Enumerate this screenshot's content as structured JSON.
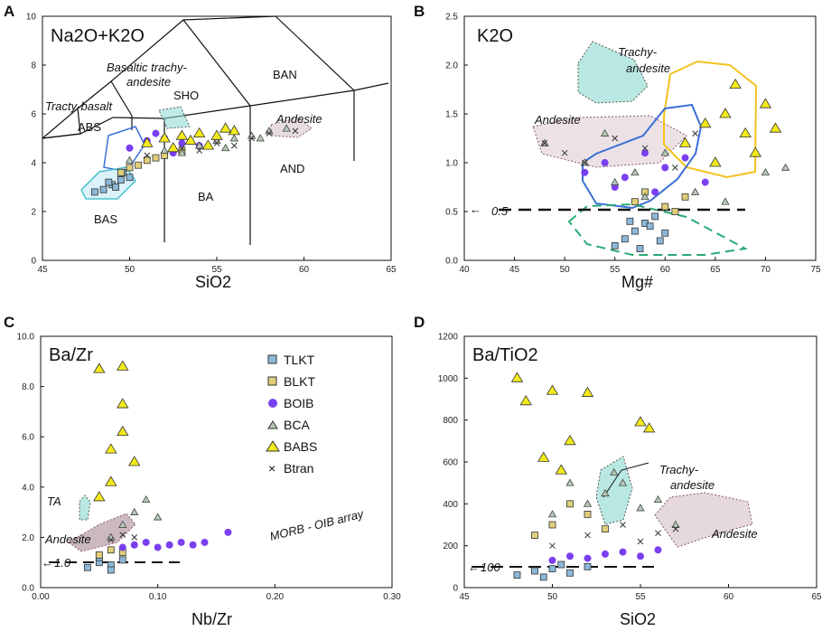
{
  "figure": {
    "symbol_colors": {
      "TLKT": "#8db8d8",
      "BLKT": "#e0cf7a",
      "BOIB": "#7a3ff0",
      "BCA": "#b5c8b5",
      "BABS": "#f2ea1a",
      "Btran": "#333333"
    }
  },
  "chart_data": [
    {
      "panel": "A",
      "type": "scatter",
      "title": "Na2O+K2O",
      "xlabel": "SiO2",
      "ylabel": "",
      "xlim": [
        45,
        65
      ],
      "ylim": [
        0,
        10
      ],
      "xticks": [
        "45",
        "50",
        "55",
        "60",
        "65"
      ],
      "yticks": [
        "0",
        "2",
        "4",
        "6",
        "8",
        "10"
      ],
      "field_labels": [
        "Basaltic trachy-",
        "andesite",
        "SHO",
        "BAN",
        "Tracty-basalt",
        "ABS",
        "Andesite",
        "AND",
        "BA",
        "BAS"
      ],
      "series": [
        {
          "name": "TLKT",
          "x": [
            48.5,
            49,
            49.5,
            48,
            49.2,
            50,
            48.8,
            49.6
          ],
          "y": [
            2.9,
            3.1,
            3.3,
            2.8,
            3.0,
            3.4,
            3.2,
            3.6
          ]
        },
        {
          "name": "BLKT",
          "x": [
            49.5,
            50.5,
            51,
            52,
            53,
            50,
            51.5
          ],
          "y": [
            3.6,
            3.9,
            4.1,
            4.3,
            4.5,
            3.8,
            4.2
          ]
        },
        {
          "name": "BOIB",
          "x": [
            50,
            51,
            52,
            53,
            51.5,
            52.5,
            54
          ],
          "y": [
            4.6,
            4.9,
            5.0,
            4.8,
            5.2,
            4.4,
            4.7
          ]
        },
        {
          "name": "BCA",
          "x": [
            50,
            52,
            54,
            55,
            56,
            57,
            58,
            59,
            53,
            55.5,
            57.5
          ],
          "y": [
            4.1,
            4.5,
            4.7,
            4.9,
            5.0,
            5.1,
            5.3,
            5.4,
            4.4,
            4.6,
            5.0
          ]
        },
        {
          "name": "BABS",
          "x": [
            51,
            52,
            53,
            54,
            55,
            56,
            52.5,
            53.5,
            54.5,
            55.5
          ],
          "y": [
            4.8,
            5.0,
            5.1,
            5.2,
            5.1,
            5.3,
            4.6,
            4.9,
            4.7,
            5.4
          ]
        },
        {
          "name": "Btran",
          "x": [
            51,
            53,
            55,
            57,
            58,
            59.5,
            54,
            56
          ],
          "y": [
            4.3,
            4.6,
            4.8,
            5.0,
            5.2,
            5.3,
            4.5,
            4.7
          ]
        }
      ]
    },
    {
      "panel": "B",
      "type": "scatter",
      "title": "K2O",
      "xlabel": "Mg#",
      "ylabel": "",
      "xlim": [
        40,
        75
      ],
      "ylim": [
        0,
        2.5
      ],
      "xticks": [
        "40",
        "45",
        "50",
        "55",
        "60",
        "65",
        "70",
        "75"
      ],
      "yticks": [
        "0.0",
        "0.5",
        "1.0",
        "1.5",
        "2.0",
        "2.5"
      ],
      "field_labels": [
        "Trachy-",
        "andesite",
        "Andesite"
      ],
      "ref_line": {
        "value": 0.5,
        "label": "0.5"
      },
      "series": [
        {
          "name": "TLKT",
          "x": [
            55,
            56,
            57,
            58,
            59,
            60,
            57.5,
            58.5,
            56.5,
            59.5
          ],
          "y": [
            0.15,
            0.22,
            0.3,
            0.38,
            0.45,
            0.28,
            0.12,
            0.35,
            0.4,
            0.2
          ]
        },
        {
          "name": "BLKT",
          "x": [
            57,
            58,
            60,
            61,
            62
          ],
          "y": [
            0.6,
            0.7,
            0.55,
            0.5,
            0.65
          ]
        },
        {
          "name": "BOIB",
          "x": [
            52,
            54,
            56,
            58,
            60,
            62,
            64,
            55,
            59
          ],
          "y": [
            0.9,
            1.0,
            0.85,
            1.1,
            0.95,
            1.05,
            0.8,
            0.75,
            0.7
          ]
        },
        {
          "name": "BCA",
          "x": [
            48,
            52,
            55,
            57,
            60,
            63,
            66,
            70,
            72,
            54,
            58
          ],
          "y": [
            1.2,
            1.0,
            0.8,
            0.9,
            1.1,
            0.7,
            0.6,
            0.9,
            0.95,
            1.3,
            0.65
          ]
        },
        {
          "name": "BABS",
          "x": [
            62,
            64,
            66,
            68,
            70,
            67,
            69,
            65,
            71
          ],
          "y": [
            1.2,
            1.4,
            1.5,
            1.3,
            1.6,
            1.8,
            1.1,
            1.0,
            1.35
          ]
        },
        {
          "name": "Btran",
          "x": [
            48,
            50,
            52,
            55,
            58,
            61,
            63
          ],
          "y": [
            1.2,
            1.1,
            1.0,
            1.25,
            1.15,
            0.95,
            1.3
          ]
        }
      ]
    },
    {
      "panel": "C",
      "type": "scatter",
      "title": "Ba/Zr",
      "xlabel": "Nb/Zr",
      "ylabel": "",
      "xlim": [
        0,
        0.3
      ],
      "ylim": [
        0,
        10
      ],
      "xticks": [
        "0.00",
        "0.10",
        "0.20",
        "0.30"
      ],
      "yticks": [
        "0.0",
        "2.0",
        "4.0",
        "6.0",
        "8.0",
        "10.0"
      ],
      "field_labels": [
        "TA",
        "Andesite",
        "MORB - OIB array"
      ],
      "ref_line": {
        "value": 1.0,
        "label": "1.0"
      },
      "legend": [
        "TLKT",
        "BLKT",
        "BOIB",
        "BCA",
        "BABS",
        "Btran"
      ],
      "series": [
        {
          "name": "TLKT",
          "x": [
            0.04,
            0.05,
            0.06,
            0.07,
            0.05,
            0.06
          ],
          "y": [
            0.8,
            1.0,
            0.9,
            1.1,
            1.2,
            0.7
          ]
        },
        {
          "name": "BLKT",
          "x": [
            0.05,
            0.06,
            0.07
          ],
          "y": [
            1.3,
            1.5,
            1.4
          ]
        },
        {
          "name": "BOIB",
          "x": [
            0.07,
            0.08,
            0.09,
            0.1,
            0.11,
            0.12,
            0.13,
            0.14,
            0.16
          ],
          "y": [
            1.6,
            1.7,
            1.8,
            1.6,
            1.7,
            1.8,
            1.7,
            1.8,
            2.2
          ]
        },
        {
          "name": "BCA",
          "x": [
            0.06,
            0.07,
            0.08,
            0.09,
            0.1
          ],
          "y": [
            2.0,
            2.5,
            3.0,
            3.5,
            2.8
          ]
        },
        {
          "name": "BABS",
          "x": [
            0.05,
            0.06,
            0.07,
            0.07,
            0.08,
            0.06,
            0.07,
            0.05
          ],
          "y": [
            8.7,
            5.5,
            8.8,
            7.3,
            5.0,
            4.2,
            6.2,
            3.6
          ]
        },
        {
          "name": "Btran",
          "x": [
            0.06,
            0.07,
            0.08
          ],
          "y": [
            1.9,
            2.1,
            2.0
          ]
        }
      ]
    },
    {
      "panel": "D",
      "type": "scatter",
      "title": "Ba/TiO2",
      "xlabel": "SiO2",
      "ylabel": "",
      "xlim": [
        45,
        65
      ],
      "ylim": [
        0,
        1200
      ],
      "xticks": [
        "45",
        "50",
        "55",
        "60",
        "65"
      ],
      "yticks": [
        "0",
        "200",
        "400",
        "600",
        "800",
        "1000",
        "1200"
      ],
      "field_labels": [
        "Trachy-",
        "andesite",
        "Andesite"
      ],
      "ref_line": {
        "value": 100,
        "label": "100"
      },
      "series": [
        {
          "name": "TLKT",
          "x": [
            48,
            49,
            50,
            51,
            52,
            49.5,
            50.5
          ],
          "y": [
            60,
            80,
            90,
            70,
            100,
            50,
            110
          ]
        },
        {
          "name": "BLKT",
          "x": [
            49,
            50,
            51,
            52,
            53
          ],
          "y": [
            250,
            300,
            400,
            350,
            280
          ]
        },
        {
          "name": "BOIB",
          "x": [
            50,
            51,
            52,
            53,
            54,
            55,
            56
          ],
          "y": [
            130,
            150,
            140,
            160,
            170,
            150,
            180
          ]
        },
        {
          "name": "BCA",
          "x": [
            50,
            52,
            53,
            54,
            55,
            56,
            57,
            51,
            53.5
          ],
          "y": [
            350,
            400,
            450,
            500,
            380,
            420,
            300,
            500,
            550
          ]
        },
        {
          "name": "BABS",
          "x": [
            48,
            48.5,
            50,
            51,
            52,
            55,
            55.5,
            49.5,
            50.5
          ],
          "y": [
            1000,
            890,
            940,
            700,
            930,
            790,
            760,
            620,
            560
          ]
        },
        {
          "name": "Btran",
          "x": [
            50,
            52,
            54,
            55,
            56,
            57
          ],
          "y": [
            200,
            250,
            300,
            220,
            260,
            280
          ]
        }
      ]
    }
  ]
}
